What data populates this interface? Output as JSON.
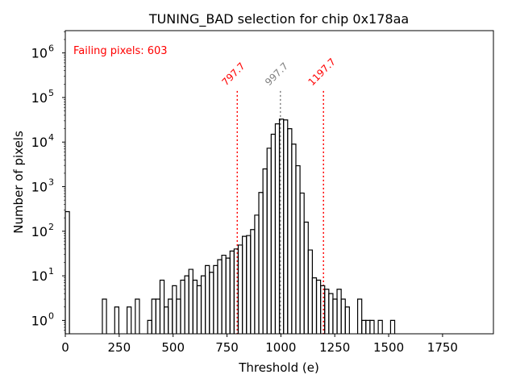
{
  "chart_data": {
    "type": "histogram",
    "title": "TUNING_BAD selection for chip 0x178aa",
    "xlabel": "Threshold (e)",
    "ylabel": "Number of pixels",
    "xlim": [
      0,
      1986
    ],
    "ylim_log10": [
      -0.3,
      6.5
    ],
    "yscale": "log",
    "grid": false,
    "bin_width": 19.1,
    "x_ticks": [
      0,
      250,
      500,
      750,
      1000,
      1250,
      1500,
      1750
    ],
    "x_tick_labels": [
      "0",
      "250",
      "500",
      "750",
      "1000",
      "1250",
      "1500",
      "1750"
    ],
    "y_ticks": [
      0,
      1,
      2,
      3,
      4,
      5,
      6
    ],
    "y_tick_base": "10",
    "bins": [
      {
        "bin": 0,
        "count": 275
      },
      {
        "bin": 9,
        "count": 3
      },
      {
        "bin": 12,
        "count": 2
      },
      {
        "bin": 15,
        "count": 2
      },
      {
        "bin": 17,
        "count": 3
      },
      {
        "bin": 20,
        "count": 1
      },
      {
        "bin": 21,
        "count": 3
      },
      {
        "bin": 22,
        "count": 3
      },
      {
        "bin": 23,
        "count": 8
      },
      {
        "bin": 24,
        "count": 2
      },
      {
        "bin": 25,
        "count": 3
      },
      {
        "bin": 26,
        "count": 6
      },
      {
        "bin": 27,
        "count": 3
      },
      {
        "bin": 28,
        "count": 8
      },
      {
        "bin": 29,
        "count": 10
      },
      {
        "bin": 30,
        "count": 14
      },
      {
        "bin": 31,
        "count": 8
      },
      {
        "bin": 32,
        "count": 6
      },
      {
        "bin": 33,
        "count": 10
      },
      {
        "bin": 34,
        "count": 17
      },
      {
        "bin": 35,
        "count": 12
      },
      {
        "bin": 36,
        "count": 17
      },
      {
        "bin": 37,
        "count": 23
      },
      {
        "bin": 38,
        "count": 29
      },
      {
        "bin": 39,
        "count": 25
      },
      {
        "bin": 40,
        "count": 36
      },
      {
        "bin": 41,
        "count": 40
      },
      {
        "bin": 42,
        "count": 49
      },
      {
        "bin": 43,
        "count": 77
      },
      {
        "bin": 44,
        "count": 80
      },
      {
        "bin": 45,
        "count": 109
      },
      {
        "bin": 46,
        "count": 230
      },
      {
        "bin": 47,
        "count": 740
      },
      {
        "bin": 48,
        "count": 2500
      },
      {
        "bin": 49,
        "count": 7300
      },
      {
        "bin": 50,
        "count": 15000
      },
      {
        "bin": 51,
        "count": 25600
      },
      {
        "bin": 52,
        "count": 32700
      },
      {
        "bin": 53,
        "count": 31400
      },
      {
        "bin": 54,
        "count": 20000
      },
      {
        "bin": 55,
        "count": 9000
      },
      {
        "bin": 56,
        "count": 2950
      },
      {
        "bin": 57,
        "count": 720
      },
      {
        "bin": 58,
        "count": 160
      },
      {
        "bin": 59,
        "count": 38
      },
      {
        "bin": 60,
        "count": 9
      },
      {
        "bin": 61,
        "count": 8
      },
      {
        "bin": 62,
        "count": 6
      },
      {
        "bin": 63,
        "count": 5
      },
      {
        "bin": 64,
        "count": 4
      },
      {
        "bin": 65,
        "count": 3
      },
      {
        "bin": 66,
        "count": 5
      },
      {
        "bin": 67,
        "count": 3
      },
      {
        "bin": 68,
        "count": 2
      },
      {
        "bin": 71,
        "count": 3
      },
      {
        "bin": 72,
        "count": 1
      },
      {
        "bin": 73,
        "count": 1
      },
      {
        "bin": 74,
        "count": 1
      },
      {
        "bin": 76,
        "count": 1
      },
      {
        "bin": 79,
        "count": 1
      }
    ],
    "vlines": [
      {
        "x": 797.7,
        "label": "797.7",
        "color": "#ff0000"
      },
      {
        "x": 997.7,
        "label": "997.7",
        "color": "#808080"
      },
      {
        "x": 1197.7,
        "label": "1197.7",
        "color": "#ff0000"
      }
    ],
    "annotations": [
      {
        "text": "Failing pixels: 603",
        "color": "#ff0000",
        "placement": "top-left"
      }
    ]
  }
}
